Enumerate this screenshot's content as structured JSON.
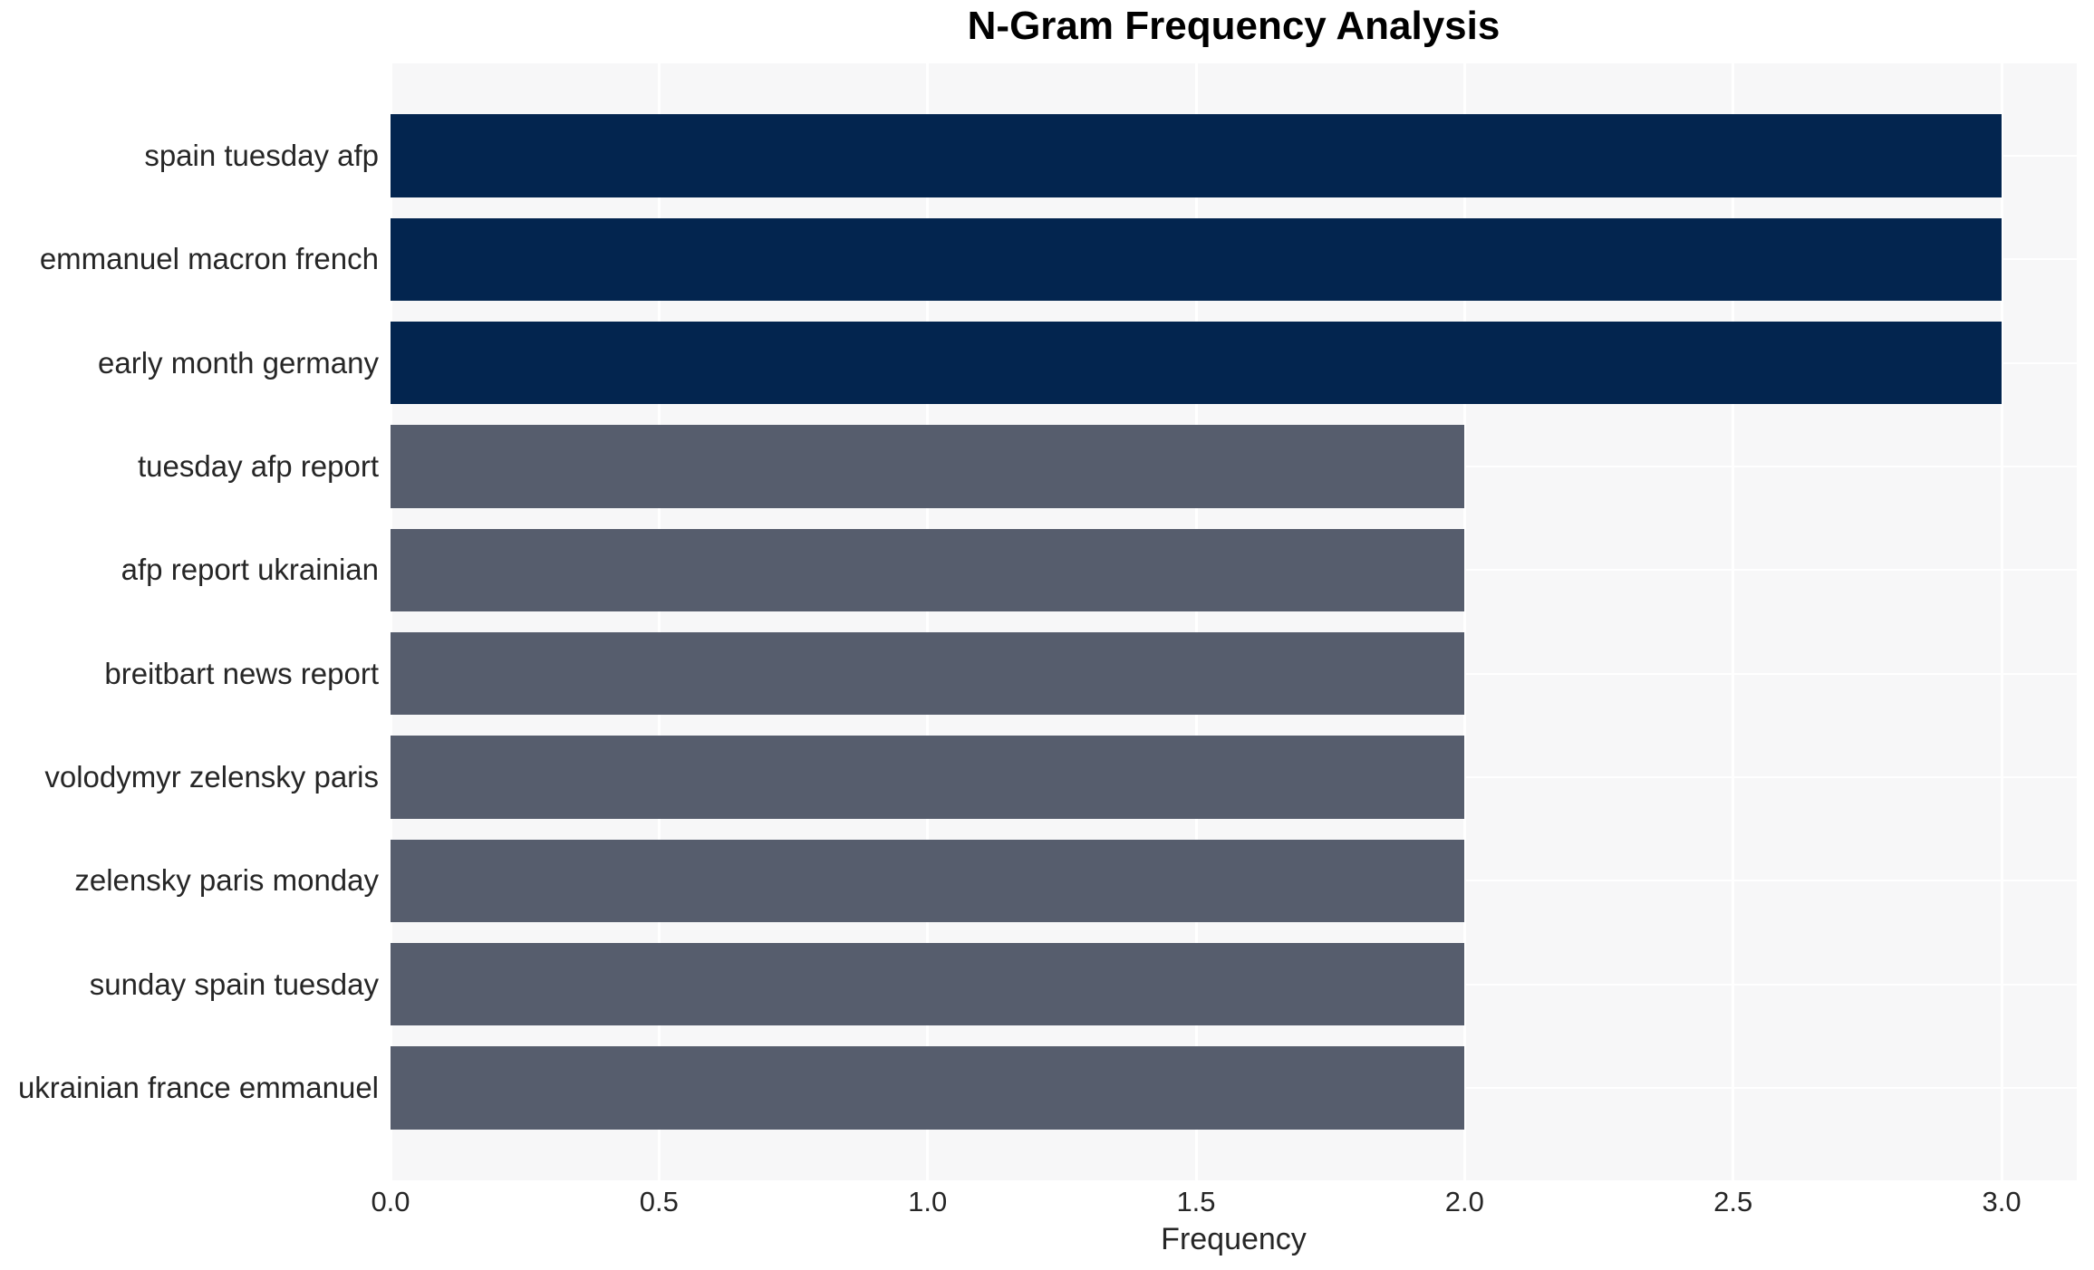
{
  "chart_data": {
    "type": "bar",
    "orientation": "horizontal",
    "title": "N-Gram Frequency Analysis",
    "xlabel": "Frequency",
    "ylabel": "",
    "categories": [
      "spain tuesday afp",
      "emmanuel macron french",
      "early month germany",
      "tuesday afp report",
      "afp report ukrainian",
      "breitbart news report",
      "volodymyr zelensky paris",
      "zelensky paris monday",
      "sunday spain tuesday",
      "ukrainian france emmanuel"
    ],
    "values": [
      3,
      3,
      3,
      2,
      2,
      2,
      2,
      2,
      2,
      2
    ],
    "bar_colors": [
      "#03254f",
      "#03254f",
      "#03254f",
      "#565d6d",
      "#565d6d",
      "#565d6d",
      "#565d6d",
      "#565d6d",
      "#565d6d",
      "#565d6d"
    ],
    "xlim": [
      0,
      3.14
    ],
    "xticks": [
      {
        "value": 0.0,
        "label": "0.0"
      },
      {
        "value": 0.5,
        "label": "0.5"
      },
      {
        "value": 1.0,
        "label": "1.0"
      },
      {
        "value": 1.5,
        "label": "1.5"
      },
      {
        "value": 2.0,
        "label": "2.0"
      },
      {
        "value": 2.5,
        "label": "2.5"
      },
      {
        "value": 3.0,
        "label": "3.0"
      }
    ],
    "grid": true,
    "legend": false,
    "plot_background": "#f7f7f8",
    "grid_color": "#ffffff",
    "text_color": "#262626",
    "title_color": "#000000"
  }
}
